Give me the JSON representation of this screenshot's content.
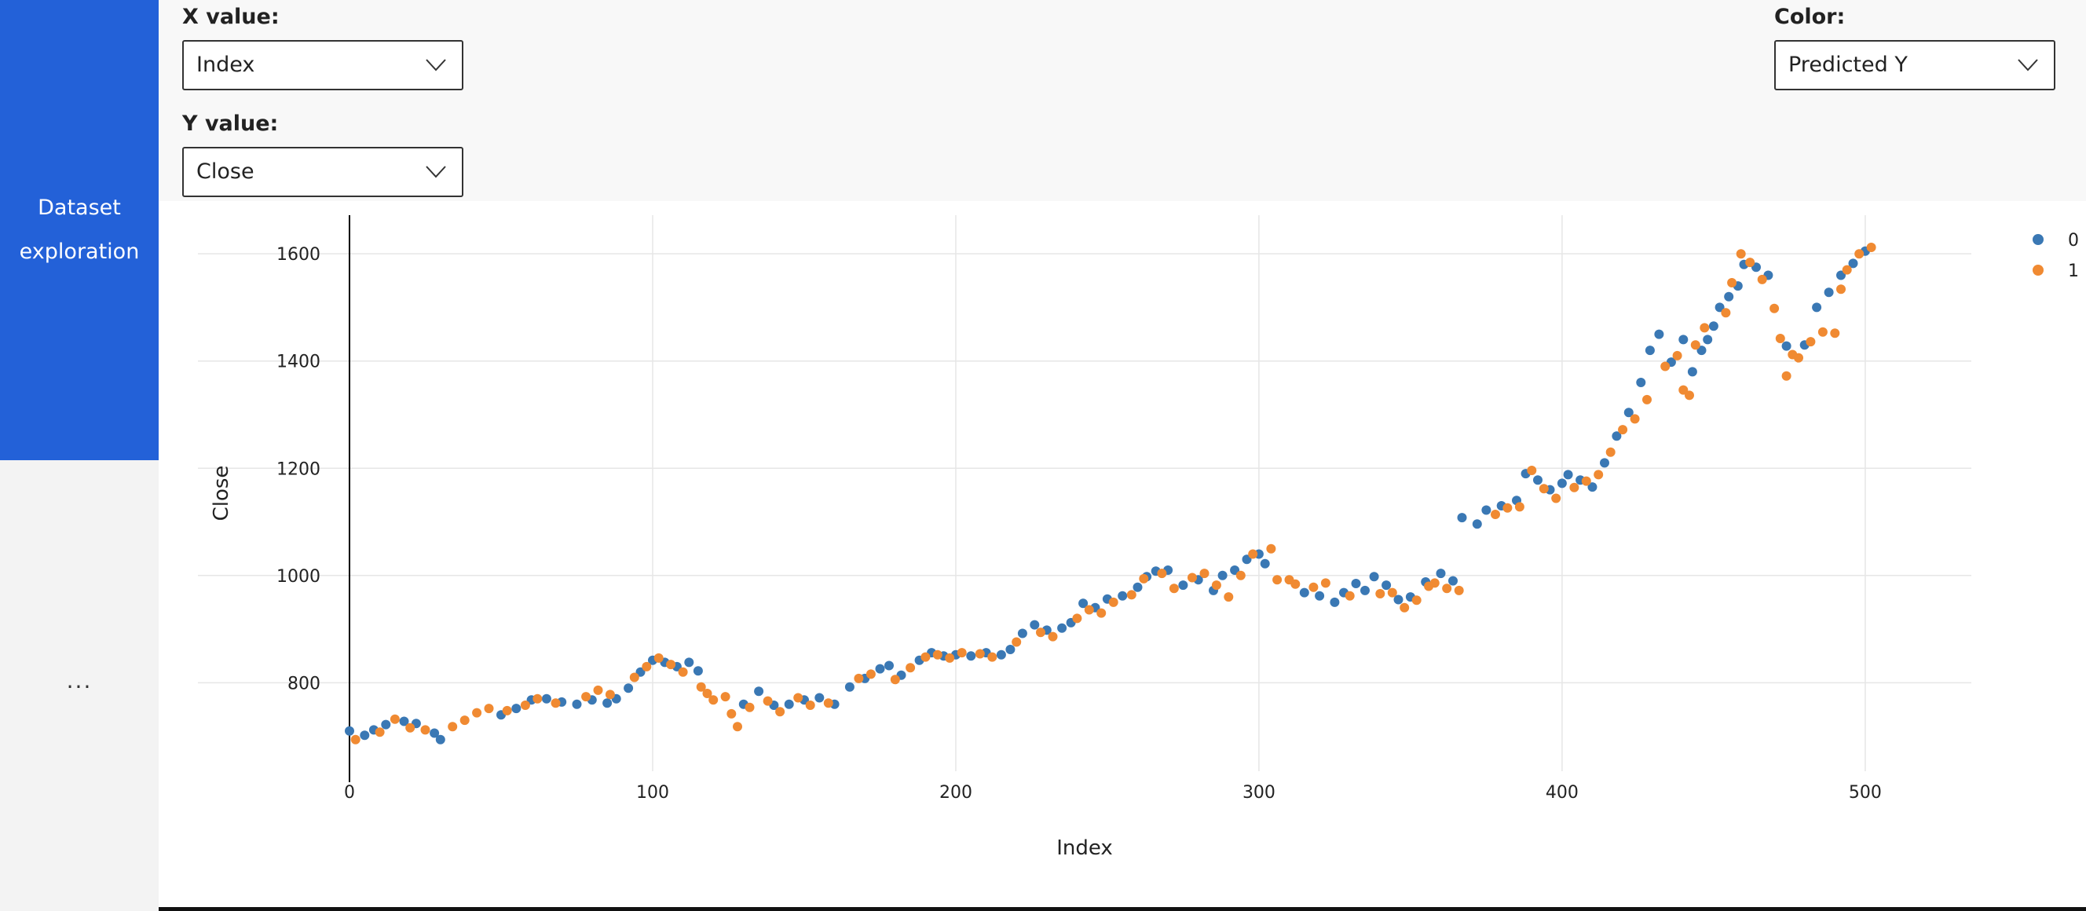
{
  "sidebar": {
    "active_item_line1": "Dataset",
    "active_item_line2": "exploration",
    "more_label": "..."
  },
  "controls": {
    "x_label": "X value:",
    "x_selected": "Index",
    "y_label": "Y value:",
    "y_selected": "Close",
    "color_label": "Color:",
    "color_selected": "Predicted Y"
  },
  "colors": {
    "series_0": "#3a78b4",
    "series_1": "#f08a32",
    "accent": "#2361d8"
  },
  "chart_data": {
    "type": "scatter",
    "xlabel": "Index",
    "ylabel": "Close",
    "xlim": [
      -50,
      535
    ],
    "ylim": [
      635,
      1672
    ],
    "x_ticks": [
      0,
      100,
      200,
      300,
      400,
      500
    ],
    "y_ticks": [
      800,
      1000,
      1200,
      1400,
      1600
    ],
    "grid": true,
    "legend_position": "top-right",
    "series": [
      {
        "name": "0",
        "color": "#3a78b4",
        "points": [
          [
            0,
            710
          ],
          [
            5,
            702
          ],
          [
            8,
            712
          ],
          [
            12,
            722
          ],
          [
            18,
            728
          ],
          [
            22,
            724
          ],
          [
            28,
            706
          ],
          [
            30,
            694
          ],
          [
            50,
            740
          ],
          [
            55,
            752
          ],
          [
            60,
            768
          ],
          [
            65,
            770
          ],
          [
            70,
            764
          ],
          [
            75,
            760
          ],
          [
            80,
            768
          ],
          [
            85,
            762
          ],
          [
            88,
            770
          ],
          [
            92,
            790
          ],
          [
            96,
            820
          ],
          [
            100,
            842
          ],
          [
            104,
            838
          ],
          [
            108,
            830
          ],
          [
            112,
            838
          ],
          [
            115,
            822
          ],
          [
            130,
            760
          ],
          [
            135,
            784
          ],
          [
            140,
            758
          ],
          [
            145,
            760
          ],
          [
            150,
            768
          ],
          [
            155,
            772
          ],
          [
            160,
            760
          ],
          [
            165,
            792
          ],
          [
            170,
            808
          ],
          [
            175,
            826
          ],
          [
            178,
            832
          ],
          [
            182,
            814
          ],
          [
            188,
            842
          ],
          [
            192,
            856
          ],
          [
            196,
            850
          ],
          [
            200,
            852
          ],
          [
            205,
            850
          ],
          [
            210,
            856
          ],
          [
            215,
            852
          ],
          [
            218,
            862
          ],
          [
            222,
            892
          ],
          [
            226,
            908
          ],
          [
            230,
            898
          ],
          [
            235,
            902
          ],
          [
            238,
            912
          ],
          [
            242,
            948
          ],
          [
            246,
            940
          ],
          [
            250,
            956
          ],
          [
            255,
            962
          ],
          [
            260,
            978
          ],
          [
            263,
            998
          ],
          [
            266,
            1008
          ],
          [
            270,
            1010
          ],
          [
            275,
            982
          ],
          [
            280,
            992
          ],
          [
            285,
            972
          ],
          [
            288,
            1000
          ],
          [
            292,
            1010
          ],
          [
            296,
            1030
          ],
          [
            300,
            1040
          ],
          [
            302,
            1022
          ],
          [
            315,
            968
          ],
          [
            320,
            962
          ],
          [
            325,
            950
          ],
          [
            328,
            968
          ],
          [
            332,
            985
          ],
          [
            335,
            972
          ],
          [
            338,
            998
          ],
          [
            342,
            982
          ],
          [
            346,
            955
          ],
          [
            350,
            960
          ],
          [
            355,
            988
          ],
          [
            360,
            1004
          ],
          [
            364,
            990
          ],
          [
            367,
            1108
          ],
          [
            372,
            1096
          ],
          [
            375,
            1122
          ],
          [
            380,
            1130
          ],
          [
            385,
            1140
          ],
          [
            388,
            1190
          ],
          [
            392,
            1178
          ],
          [
            396,
            1160
          ],
          [
            400,
            1172
          ],
          [
            402,
            1188
          ],
          [
            406,
            1178
          ],
          [
            410,
            1165
          ],
          [
            414,
            1210
          ],
          [
            418,
            1260
          ],
          [
            422,
            1304
          ],
          [
            426,
            1360
          ],
          [
            429,
            1420
          ],
          [
            432,
            1450
          ],
          [
            436,
            1398
          ],
          [
            440,
            1440
          ],
          [
            443,
            1380
          ],
          [
            446,
            1420
          ],
          [
            448,
            1440
          ],
          [
            450,
            1465
          ],
          [
            452,
            1500
          ],
          [
            455,
            1520
          ],
          [
            458,
            1540
          ],
          [
            460,
            1580
          ],
          [
            464,
            1575
          ],
          [
            468,
            1560
          ],
          [
            474,
            1428
          ],
          [
            480,
            1430
          ],
          [
            484,
            1500
          ],
          [
            488,
            1528
          ],
          [
            492,
            1560
          ],
          [
            496,
            1582
          ],
          [
            500,
            1605
          ]
        ]
      },
      {
        "name": "1",
        "color": "#f08a32",
        "points": [
          [
            2,
            694
          ],
          [
            10,
            708
          ],
          [
            15,
            732
          ],
          [
            20,
            716
          ],
          [
            25,
            712
          ],
          [
            34,
            718
          ],
          [
            38,
            730
          ],
          [
            42,
            744
          ],
          [
            46,
            752
          ],
          [
            52,
            748
          ],
          [
            58,
            758
          ],
          [
            62,
            770
          ],
          [
            68,
            762
          ],
          [
            78,
            774
          ],
          [
            82,
            786
          ],
          [
            86,
            778
          ],
          [
            94,
            810
          ],
          [
            98,
            830
          ],
          [
            102,
            846
          ],
          [
            106,
            834
          ],
          [
            110,
            820
          ],
          [
            116,
            792
          ],
          [
            118,
            780
          ],
          [
            120,
            768
          ],
          [
            124,
            774
          ],
          [
            126,
            742
          ],
          [
            128,
            718
          ],
          [
            132,
            754
          ],
          [
            138,
            766
          ],
          [
            142,
            746
          ],
          [
            148,
            772
          ],
          [
            152,
            758
          ],
          [
            158,
            762
          ],
          [
            168,
            808
          ],
          [
            172,
            816
          ],
          [
            180,
            806
          ],
          [
            185,
            828
          ],
          [
            190,
            848
          ],
          [
            194,
            852
          ],
          [
            198,
            846
          ],
          [
            202,
            856
          ],
          [
            208,
            854
          ],
          [
            212,
            848
          ],
          [
            220,
            876
          ],
          [
            228,
            894
          ],
          [
            232,
            886
          ],
          [
            240,
            920
          ],
          [
            244,
            936
          ],
          [
            248,
            930
          ],
          [
            252,
            950
          ],
          [
            258,
            964
          ],
          [
            262,
            994
          ],
          [
            268,
            1004
          ],
          [
            272,
            976
          ],
          [
            278,
            996
          ],
          [
            282,
            1004
          ],
          [
            286,
            982
          ],
          [
            290,
            960
          ],
          [
            294,
            1000
          ],
          [
            298,
            1040
          ],
          [
            304,
            1050
          ],
          [
            306,
            992
          ],
          [
            310,
            992
          ],
          [
            312,
            984
          ],
          [
            318,
            978
          ],
          [
            322,
            986
          ],
          [
            330,
            962
          ],
          [
            340,
            966
          ],
          [
            344,
            968
          ],
          [
            348,
            940
          ],
          [
            352,
            954
          ],
          [
            356,
            980
          ],
          [
            358,
            986
          ],
          [
            362,
            976
          ],
          [
            366,
            972
          ],
          [
            378,
            1114
          ],
          [
            382,
            1126
          ],
          [
            386,
            1128
          ],
          [
            390,
            1196
          ],
          [
            394,
            1162
          ],
          [
            398,
            1144
          ],
          [
            404,
            1164
          ],
          [
            408,
            1176
          ],
          [
            412,
            1188
          ],
          [
            416,
            1230
          ],
          [
            420,
            1272
          ],
          [
            424,
            1292
          ],
          [
            428,
            1328
          ],
          [
            434,
            1390
          ],
          [
            438,
            1410
          ],
          [
            440,
            1346
          ],
          [
            442,
            1336
          ],
          [
            444,
            1430
          ],
          [
            447,
            1462
          ],
          [
            454,
            1490
          ],
          [
            456,
            1546
          ],
          [
            459,
            1600
          ],
          [
            462,
            1584
          ],
          [
            466,
            1552
          ],
          [
            470,
            1498
          ],
          [
            472,
            1442
          ],
          [
            474,
            1372
          ],
          [
            476,
            1412
          ],
          [
            478,
            1406
          ],
          [
            482,
            1436
          ],
          [
            486,
            1454
          ],
          [
            490,
            1452
          ],
          [
            492,
            1534
          ],
          [
            494,
            1570
          ],
          [
            498,
            1600
          ],
          [
            502,
            1612
          ]
        ]
      }
    ]
  }
}
